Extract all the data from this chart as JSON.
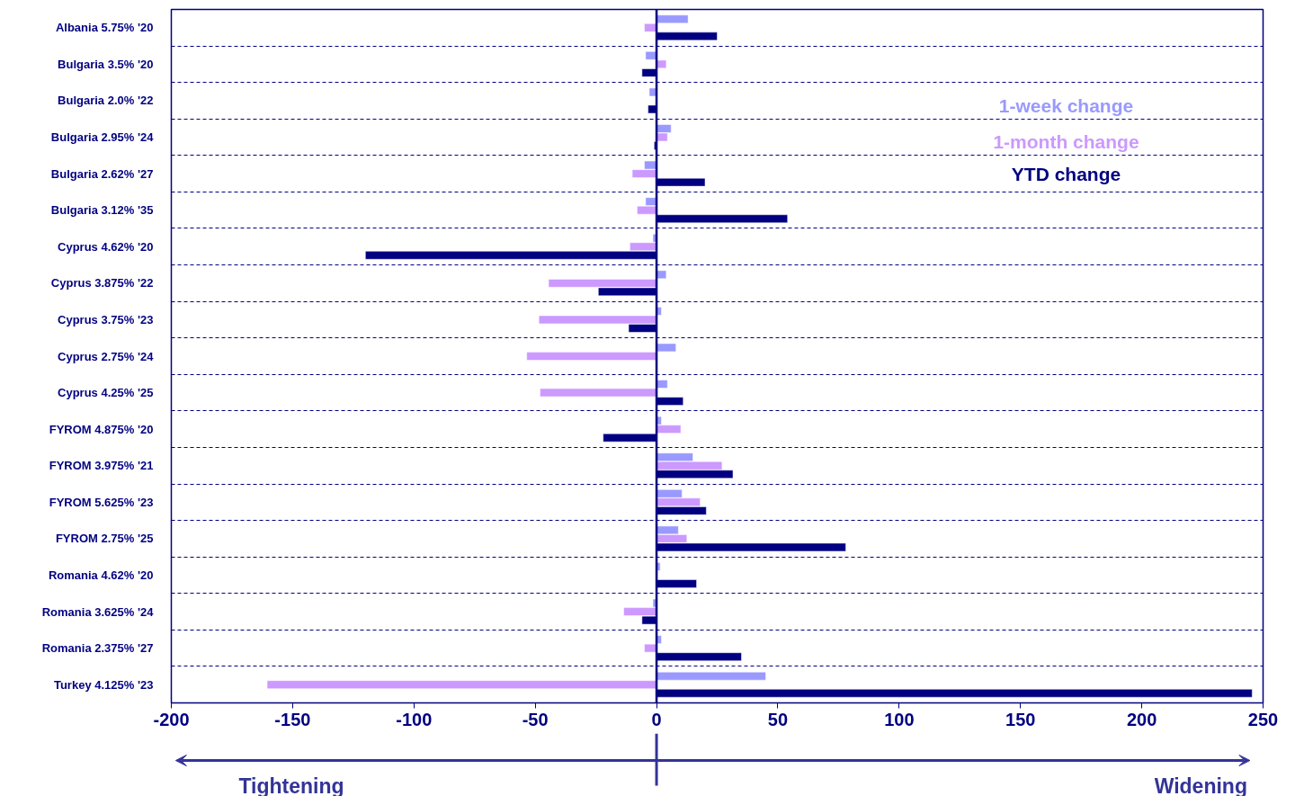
{
  "chart_data": {
    "type": "bar",
    "orientation": "horizontal",
    "categories": [
      "Albania 5.75% '20",
      "Bulgaria 3.5% '20",
      "Bulgaria 2.0% '22",
      "Bulgaria 2.95% '24",
      "Bulgaria 2.62% '27",
      "Bulgaria 3.12% '35",
      "Cyprus 4.62% '20",
      "Cyprus 3.875% '22",
      "Cyprus 3.75% '23",
      "Cyprus 2.75% '24",
      "Cyprus 4.25% '25",
      "FYROM 4.875% '20",
      "FYROM 3.975% '21",
      "FYROM 5.625% '23",
      "FYROM 2.75% '25",
      "Romania 4.62% '20",
      "Romania 3.625% '24",
      "Romania 2.375% '27",
      "Turkey 4.125% '23"
    ],
    "series": [
      {
        "name": "1-week change",
        "color": "#9999ff",
        "values": [
          13,
          -4.5,
          -3,
          6,
          -5,
          -4.5,
          -1.5,
          4,
          2,
          8,
          4.5,
          2,
          15,
          10.5,
          9,
          1.5,
          -1.5,
          2,
          45
        ]
      },
      {
        "name": "1-month change",
        "color": "#cc99ff",
        "values": [
          -5,
          4,
          null,
          4.5,
          -10,
          -8,
          -11,
          -44.5,
          -48.5,
          -53.5,
          -48,
          10,
          27,
          18,
          12.5,
          0.5,
          -13.5,
          -5,
          -160.5
        ]
      },
      {
        "name": "YTD change",
        "color": "#000080",
        "values": [
          25,
          -6,
          -3.5,
          -1,
          20,
          54,
          -120,
          -24,
          -11.5,
          null,
          11,
          -22,
          31.5,
          20.5,
          78,
          16.5,
          -6,
          35,
          245.5
        ]
      }
    ],
    "xlim": [
      -200,
      250
    ],
    "xticks": [
      -200,
      -150,
      -100,
      -50,
      0,
      50,
      100,
      150,
      200,
      250
    ],
    "grid": "y",
    "legend": "top right",
    "ref_lines": [
      {
        "axis": "x",
        "value": 0,
        "label": null
      }
    ],
    "annotations": [
      "Tightening",
      "Widening"
    ]
  }
}
